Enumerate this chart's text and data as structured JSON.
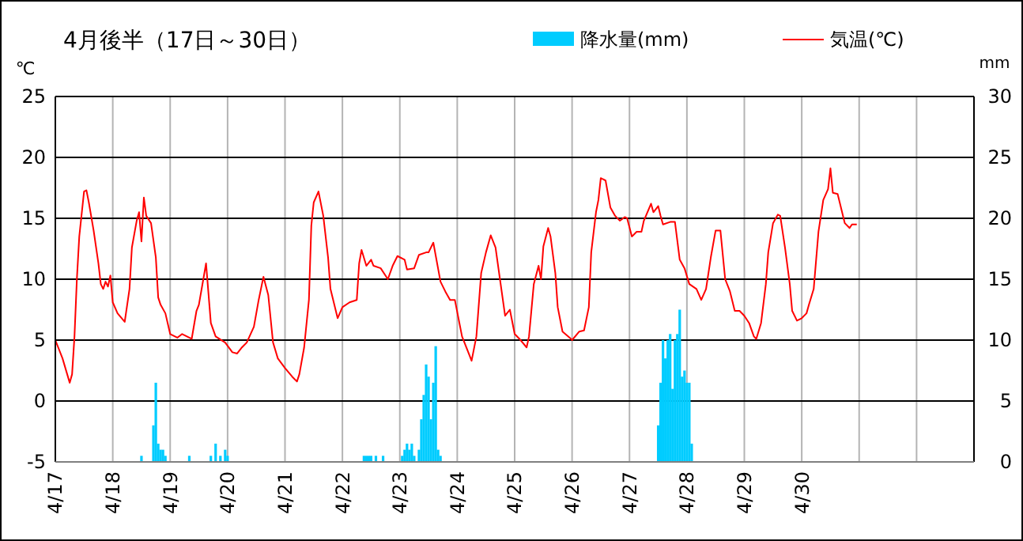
{
  "chart_data": {
    "type": "line",
    "title": "4月後半（17日～30日）",
    "ylabel": "℃",
    "y2label": "mm",
    "xlim": [
      "--04-17",
      "--05-03"
    ],
    "xticks": [
      {
        "value": "--04-17",
        "label": "4/17"
      },
      {
        "value": "--04-18",
        "label": "4/18"
      },
      {
        "value": "--04-19",
        "label": "4/19"
      },
      {
        "value": "--04-20",
        "label": "4/20"
      },
      {
        "value": "--04-21",
        "label": "4/21"
      },
      {
        "value": "--04-22",
        "label": "4/22"
      },
      {
        "value": "--04-23",
        "label": "4/23"
      },
      {
        "value": "--04-24",
        "label": "4/24"
      },
      {
        "value": "--04-25",
        "label": "4/25"
      },
      {
        "value": "--04-26",
        "label": "4/26"
      },
      {
        "value": "--04-27",
        "label": "4/27"
      },
      {
        "value": "--04-28",
        "label": "4/28"
      },
      {
        "value": "--04-29",
        "label": "4/29"
      },
      {
        "value": "--04-30",
        "label": "4/30"
      },
      {
        "value": "--05-01",
        "label": null
      },
      {
        "value": "--05-02",
        "label": null
      }
    ],
    "ylim": [
      -5,
      25
    ],
    "yticks": [
      -5,
      0,
      5,
      10,
      15,
      20,
      25
    ],
    "y2lim": [
      0,
      30
    ],
    "y2ticks": [
      0,
      5,
      10,
      15,
      20,
      25,
      30
    ],
    "grid": true,
    "legend": "top right",
    "series": [
      {
        "name": "降水量(mm)",
        "type": "bar",
        "axis": "y2",
        "color": "#00ccff",
        "x": [
          "--04-18T12:00",
          "--04-18T17:00",
          "--04-18T18:00",
          "--04-18T19:00",
          "--04-18T20:00",
          "--04-18T21:00",
          "--04-18T22:00",
          "--04-19T08:00",
          "--04-19T17:00",
          "--04-19T19:00",
          "--04-19T21:00",
          "--04-19T23:00",
          "--04-20T00:00",
          "--04-22T09:00",
          "--04-22T10:00",
          "--04-22T11:00",
          "--04-22T12:00",
          "--04-22T14:00",
          "--04-22T17:00",
          "--04-23T01:00",
          "--04-23T02:00",
          "--04-23T03:00",
          "--04-23T04:00",
          "--04-23T05:00",
          "--04-23T06:00",
          "--04-23T08:00",
          "--04-23T09:00",
          "--04-23T10:00",
          "--04-23T11:00",
          "--04-23T12:00",
          "--04-23T13:00",
          "--04-23T14:00",
          "--04-23T15:00",
          "--04-23T16:00",
          "--04-23T17:00",
          "--04-27T12:00",
          "--04-27T13:00",
          "--04-27T14:00",
          "--04-27T15:00",
          "--04-27T16:00",
          "--04-27T17:00",
          "--04-27T18:00",
          "--04-27T19:00",
          "--04-27T20:00",
          "--04-27T21:00",
          "--04-27T22:00",
          "--04-27T23:00",
          "--04-28T00:00",
          "--04-28T01:00",
          "--04-28T02:00"
        ],
        "values": [
          0.5,
          3.0,
          6.5,
          1.5,
          1.0,
          1.0,
          0.5,
          0.5,
          0.5,
          1.5,
          0.5,
          1.0,
          0.5,
          0.5,
          0.5,
          0.5,
          0.5,
          0.5,
          0.5,
          0.5,
          1.0,
          1.5,
          1.0,
          1.5,
          0.5,
          1.0,
          3.5,
          5.5,
          8.0,
          7.0,
          3.5,
          6.5,
          9.5,
          1.0,
          0.5,
          3.0,
          6.5,
          10.0,
          8.5,
          10.0,
          10.5,
          6.0,
          10.0,
          10.5,
          12.5,
          7.0,
          7.5,
          6.5,
          6.5,
          1.5
        ]
      },
      {
        "name": "気温(℃)",
        "axis": "y",
        "color": "#ff0000",
        "x": [
          "--04-17T00:00",
          "--04-17T03:00",
          "--04-17T06:00",
          "--04-17T07:00",
          "--04-17T08:00",
          "--04-17T09:00",
          "--04-17T10:00",
          "--04-17T12:00",
          "--04-17T13:00",
          "--04-17T14:00",
          "--04-17T16:00",
          "--04-17T18:00",
          "--04-17T19:00",
          "--04-17T20:00",
          "--04-17T21:00",
          "--04-17T22:00",
          "--04-17T23:00",
          "--04-18T00:00",
          "--04-18T02:00",
          "--04-18T05:00",
          "--04-18T07:00",
          "--04-18T08:00",
          "--04-18T10:00",
          "--04-18T11:00",
          "--04-18T12:00",
          "--04-18T13:00",
          "--04-18T14:00",
          "--04-18T16:00",
          "--04-18T18:00",
          "--04-18T19:00",
          "--04-18T20:00",
          "--04-18T22:00",
          "--04-19T00:00",
          "--04-19T03:00",
          "--04-19T05:00",
          "--04-19T07:00",
          "--04-19T09:00",
          "--04-19T11:00",
          "--04-19T12:00",
          "--04-19T15:00",
          "--04-19T17:00",
          "--04-19T19:00",
          "--04-19T23:00",
          "--04-20T02:00",
          "--04-20T04:00",
          "--04-20T06:00",
          "--04-20T08:00",
          "--04-20T11:00",
          "--04-20T13:00",
          "--04-20T15:00",
          "--04-20T17:00",
          "--04-20T19:00",
          "--04-20T21:00",
          "--04-21T00:00",
          "--04-21T03:00",
          "--04-21T05:00",
          "--04-21T06:00",
          "--04-21T08:00",
          "--04-21T10:00",
          "--04-21T11:00",
          "--04-21T12:00",
          "--04-21T14:00",
          "--04-21T16:00",
          "--04-21T18:00",
          "--04-21T19:00",
          "--04-21T22:00",
          "--04-22T00:00",
          "--04-22T03:00",
          "--04-22T06:00",
          "--04-22T07:00",
          "--04-22T08:00",
          "--04-22T10:00",
          "--04-22T12:00",
          "--04-22T13:00",
          "--04-22T16:00",
          "--04-22T19:00",
          "--04-22T21:00",
          "--04-22T23:00",
          "--04-23T02:00",
          "--04-23T03:00",
          "--04-23T06:00",
          "--04-23T08:00",
          "--04-23T11:00",
          "--04-23T12:00",
          "--04-23T14:00",
          "--04-23T17:00",
          "--04-23T19:00",
          "--04-23T21:00",
          "--04-23T23:00",
          "--04-24T02:00",
          "--04-24T05:00",
          "--04-24T06:00",
          "--04-24T08:00",
          "--04-24T10:00",
          "--04-24T12:00",
          "--04-24T14:00",
          "--04-24T16:00",
          "--04-24T18:00",
          "--04-24T20:00",
          "--04-24T22:00",
          "--04-25T00:00",
          "--04-25T02:00",
          "--04-25T05:00",
          "--04-25T06:00",
          "--04-25T08:00",
          "--04-25T10:00",
          "--04-25T11:00",
          "--04-25T12:00",
          "--04-25T14:00",
          "--04-25T15:00",
          "--04-25T17:00",
          "--04-25T18:00",
          "--04-25T20:00",
          "--04-25T23:00",
          "--04-26T00:00",
          "--04-26T03:00",
          "--04-26T05:00",
          "--04-26T07:00",
          "--04-26T08:00",
          "--04-26T10:00",
          "--04-26T11:00",
          "--04-26T12:00",
          "--04-26T14:00",
          "--04-26T16:00",
          "--04-26T18:00",
          "--04-26T20:00",
          "--04-26T22:00",
          "--04-26T23:00",
          "--04-27T01:00",
          "--04-27T03:00",
          "--04-27T05:00",
          "--04-27T06:00",
          "--04-27T09:00",
          "--04-27T10:00",
          "--04-27T12:00",
          "--04-27T13:00",
          "--04-27T14:00",
          "--04-27T17:00",
          "--04-27T19:00",
          "--04-27T21:00",
          "--04-27T23:00",
          "--04-28T01:00",
          "--04-28T04:00",
          "--04-28T06:00",
          "--04-28T08:00",
          "--04-28T10:00",
          "--04-28T12:00",
          "--04-28T14:00",
          "--04-28T16:00",
          "--04-28T18:00",
          "--04-28T20:00",
          "--04-28T22:00",
          "--04-29T00:00",
          "--04-29T02:00",
          "--04-29T04:00",
          "--04-29T05:00",
          "--04-29T07:00",
          "--04-29T09:00",
          "--04-29T10:00",
          "--04-29T12:00",
          "--04-29T14:00",
          "--04-29T15:00",
          "--04-29T17:00",
          "--04-29T19:00",
          "--04-29T20:00",
          "--04-29T22:00",
          "--04-30T00:00",
          "--04-30T02:00",
          "--04-30T03:00",
          "--04-30T05:00",
          "--04-30T07:00",
          "--04-30T09:00",
          "--04-30T11:00",
          "--04-30T12:00",
          "--04-30T13:00",
          "--04-30T15:00",
          "--04-30T18:00",
          "--04-30T20:00",
          "--04-30T21:00",
          "--04-30T23:00"
        ],
        "values": [
          5.0,
          3.5,
          1.5,
          2.2,
          5.3,
          10.0,
          13.5,
          17.2,
          17.3,
          16.3,
          14.0,
          11.3,
          9.6,
          9.2,
          9.8,
          9.4,
          10.3,
          8.1,
          7.2,
          6.5,
          9.2,
          12.6,
          14.8,
          15.5,
          13.1,
          16.7,
          15.2,
          14.6,
          11.8,
          8.5,
          7.9,
          7.2,
          5.5,
          5.2,
          5.5,
          5.3,
          5.1,
          7.4,
          7.9,
          11.3,
          6.4,
          5.3,
          4.8,
          4.0,
          3.9,
          4.4,
          4.8,
          6.1,
          8.3,
          10.2,
          8.7,
          4.8,
          3.5,
          2.7,
          2.0,
          1.6,
          2.2,
          4.4,
          8.3,
          14.4,
          16.3,
          17.2,
          15.2,
          11.8,
          9.2,
          6.8,
          7.7,
          8.1,
          8.3,
          11.3,
          12.4,
          11.1,
          11.6,
          11.1,
          10.9,
          10.0,
          11.1,
          11.9,
          11.6,
          10.8,
          10.9,
          12.0,
          12.2,
          12.2,
          13.0,
          9.8,
          9.0,
          8.3,
          8.3,
          5.3,
          3.8,
          3.3,
          5.3,
          10.5,
          12.2,
          13.6,
          12.6,
          9.8,
          7.0,
          7.5,
          5.5,
          5.1,
          4.4,
          5.3,
          9.6,
          11.1,
          10.0,
          12.7,
          14.2,
          13.5,
          10.5,
          7.7,
          5.7,
          5.2,
          5.0,
          5.7,
          5.8,
          7.7,
          12.2,
          15.5,
          16.5,
          18.3,
          18.1,
          15.9,
          15.2,
          14.8,
          15.1,
          15.0,
          13.5,
          13.9,
          13.9,
          14.8,
          16.2,
          15.5,
          16.0,
          15.2,
          14.5,
          14.7,
          14.7,
          11.6,
          10.9,
          9.6,
          9.2,
          8.3,
          9.2,
          11.8,
          14.0,
          14.0,
          10.0,
          9.0,
          7.4,
          7.4,
          7.0,
          6.4,
          5.3,
          5.1,
          6.4,
          9.6,
          12.2,
          14.6,
          15.3,
          15.2,
          12.6,
          9.6,
          7.4,
          6.6,
          6.8,
          7.2,
          7.9,
          9.2,
          13.9,
          16.5,
          17.4,
          19.1,
          17.1,
          17.0,
          14.6,
          14.2,
          14.5,
          14.5
        ]
      }
    ]
  }
}
